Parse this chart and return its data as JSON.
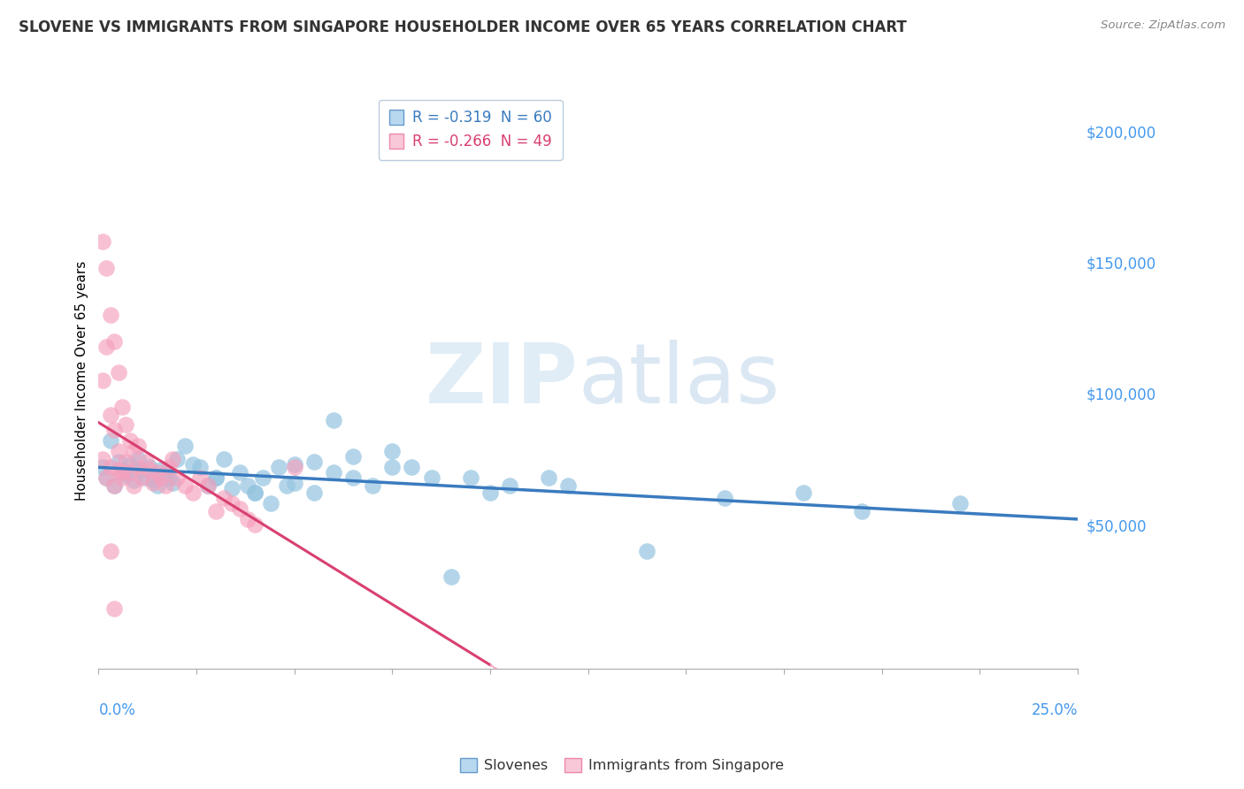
{
  "title": "SLOVENE VS IMMIGRANTS FROM SINGAPORE HOUSEHOLDER INCOME OVER 65 YEARS CORRELATION CHART",
  "source": "Source: ZipAtlas.com",
  "ylabel": "Householder Income Over 65 years",
  "xlim": [
    0.0,
    0.25
  ],
  "ylim": [
    -5000,
    215000
  ],
  "legend_r_labels": [
    "R = -0.319  N = 60",
    "R = -0.266  N = 49"
  ],
  "legend_labels": [
    "Slovenes",
    "Immigrants from Singapore"
  ],
  "watermark_zip": "ZIP",
  "watermark_atlas": "atlas",
  "blue_scatter_color": "#94c4e0",
  "pink_scatter_color": "#f5a0bc",
  "blue_line_color": "#3a7bbf",
  "pink_line_color": "#d94070",
  "pink_dash_color": "#f0b0c8",
  "grid_color": "#d8d8d8",
  "background_color": "#ffffff",
  "ytick_color": "#4499ee",
  "title_color": "#333333",
  "source_color": "#888888",
  "slovenes_x": [
    0.001,
    0.002,
    0.003,
    0.004,
    0.005,
    0.006,
    0.007,
    0.008,
    0.009,
    0.01,
    0.011,
    0.012,
    0.013,
    0.014,
    0.015,
    0.016,
    0.017,
    0.018,
    0.019,
    0.02,
    0.022,
    0.024,
    0.026,
    0.028,
    0.03,
    0.032,
    0.034,
    0.036,
    0.038,
    0.04,
    0.042,
    0.044,
    0.046,
    0.048,
    0.05,
    0.055,
    0.06,
    0.065,
    0.07,
    0.075,
    0.055,
    0.065,
    0.075,
    0.085,
    0.095,
    0.105,
    0.115,
    0.09,
    0.22,
    0.195,
    0.03,
    0.04,
    0.05,
    0.06,
    0.08,
    0.1,
    0.12,
    0.14,
    0.16,
    0.18
  ],
  "slovenes_y": [
    72000,
    68000,
    82000,
    65000,
    74000,
    70000,
    69000,
    73000,
    67000,
    75000,
    71000,
    68000,
    72000,
    67000,
    65000,
    71000,
    70000,
    68000,
    66000,
    75000,
    80000,
    73000,
    72000,
    65000,
    68000,
    75000,
    64000,
    70000,
    65000,
    62000,
    68000,
    58000,
    72000,
    65000,
    73000,
    74000,
    90000,
    76000,
    65000,
    72000,
    62000,
    68000,
    78000,
    68000,
    68000,
    65000,
    68000,
    30000,
    58000,
    55000,
    68000,
    62000,
    66000,
    70000,
    72000,
    62000,
    65000,
    40000,
    60000,
    62000
  ],
  "singapore_x": [
    0.001,
    0.002,
    0.003,
    0.004,
    0.005,
    0.006,
    0.007,
    0.008,
    0.009,
    0.01,
    0.011,
    0.012,
    0.013,
    0.014,
    0.015,
    0.016,
    0.017,
    0.018,
    0.019,
    0.02,
    0.022,
    0.024,
    0.026,
    0.028,
    0.03,
    0.032,
    0.034,
    0.036,
    0.038,
    0.04,
    0.001,
    0.002,
    0.003,
    0.004,
    0.005,
    0.006,
    0.007,
    0.008,
    0.009,
    0.01,
    0.001,
    0.002,
    0.003,
    0.004,
    0.005,
    0.006,
    0.05,
    0.003,
    0.004
  ],
  "singapore_y": [
    75000,
    68000,
    72000,
    65000,
    71000,
    68000,
    74000,
    70000,
    65000,
    72000,
    68000,
    74000,
    71000,
    66000,
    70000,
    68000,
    65000,
    72000,
    75000,
    68000,
    65000,
    62000,
    68000,
    65000,
    55000,
    60000,
    58000,
    56000,
    52000,
    50000,
    158000,
    148000,
    130000,
    120000,
    108000,
    95000,
    88000,
    82000,
    78000,
    80000,
    105000,
    118000,
    92000,
    86000,
    78000,
    70000,
    72000,
    40000,
    18000
  ]
}
